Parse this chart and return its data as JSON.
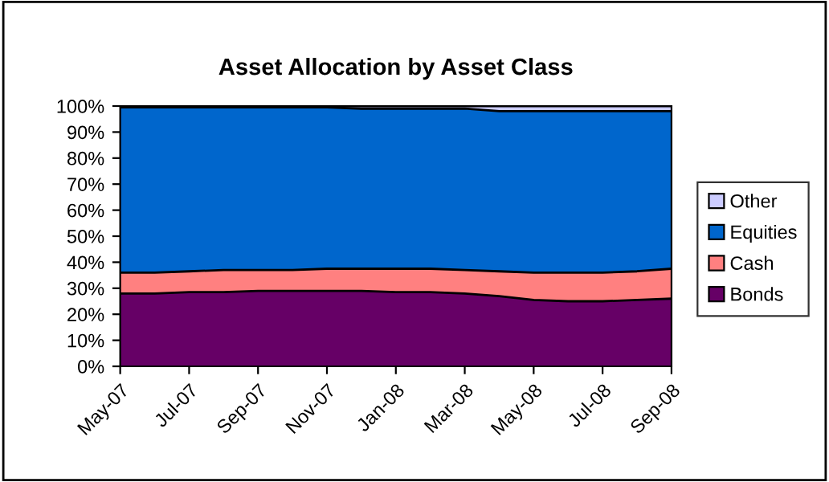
{
  "chart_data": {
    "type": "area",
    "stacked": true,
    "title": "Asset Allocation by Asset Class",
    "categories": [
      "May-07",
      null,
      "Jul-07",
      null,
      "Sep-07",
      null,
      "Nov-07",
      null,
      "Jan-08",
      null,
      "Mar-08",
      null,
      "May-08",
      null,
      "Jul-08",
      null,
      "Sep-08"
    ],
    "series": [
      {
        "name": "Bonds",
        "color": "#660066",
        "values": [
          28,
          28,
          28.5,
          28.5,
          29,
          29,
          29,
          29,
          28.5,
          28.5,
          28,
          27,
          25.5,
          25,
          25,
          25.5,
          26
        ]
      },
      {
        "name": "Cash",
        "color": "#ff8080",
        "values": [
          8,
          8,
          8,
          8.5,
          8,
          8,
          8.5,
          8.5,
          9,
          9,
          9,
          9.5,
          10.5,
          11,
          11,
          11,
          11.5
        ]
      },
      {
        "name": "Equities",
        "color": "#0066cc",
        "values": [
          63.5,
          63.5,
          63,
          62.5,
          62.5,
          62.5,
          62,
          61.5,
          61.5,
          61.5,
          62,
          61.5,
          62,
          62,
          62,
          61.5,
          60.5
        ]
      },
      {
        "name": "Other",
        "color": "#ccccff",
        "values": [
          0.5,
          0.5,
          0.5,
          0.5,
          0.5,
          0.5,
          0.5,
          1,
          1,
          1,
          1,
          2,
          2,
          2,
          2,
          2,
          2
        ]
      }
    ],
    "ylim": [
      0,
      100
    ],
    "yticks": [
      {
        "value": 0,
        "label": "0%"
      },
      {
        "value": 10,
        "label": "10%"
      },
      {
        "value": 20,
        "label": "20%"
      },
      {
        "value": 30,
        "label": "30%"
      },
      {
        "value": 40,
        "label": "40%"
      },
      {
        "value": 50,
        "label": "50%"
      },
      {
        "value": 60,
        "label": "60%"
      },
      {
        "value": 70,
        "label": "70%"
      },
      {
        "value": 80,
        "label": "80%"
      },
      {
        "value": 90,
        "label": "90%"
      },
      {
        "value": 100,
        "label": "100%"
      }
    ],
    "grid": false,
    "legend": "right"
  }
}
